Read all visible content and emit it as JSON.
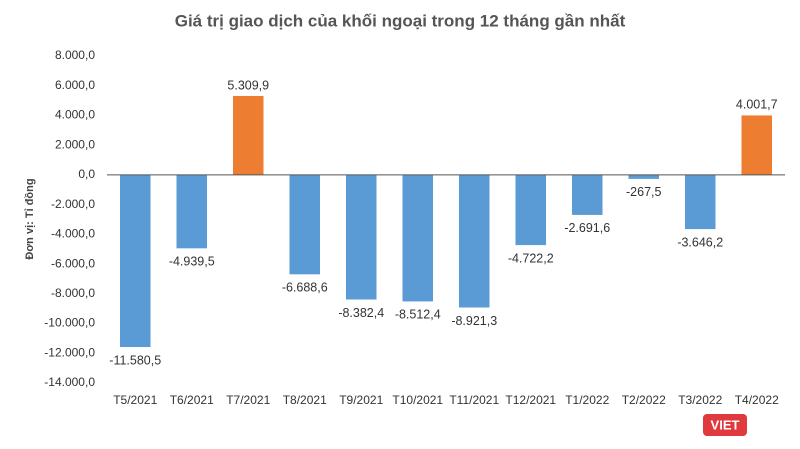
{
  "chart_data": {
    "type": "bar",
    "title": "Giá trị giao dịch của khối ngoại trong 12 tháng gần nhất",
    "y_label": "Đơn vị: Tỉ đồng",
    "watermark": "VIET",
    "categories": [
      "T5/2021",
      "T6/2021",
      "T7/2021",
      "T8/2021",
      "T9/2021",
      "T10/2021",
      "T11/2021",
      "T12/2021",
      "T1/2022",
      "T2/2022",
      "T3/2022",
      "T4/2022"
    ],
    "values": [
      -11580.5,
      -4939.5,
      5309.9,
      -6688.6,
      -8382.4,
      -8512.4,
      -8921.3,
      -4722.2,
      -2691.6,
      -267.5,
      -3646.2,
      4001.7
    ],
    "value_labels": [
      "-11.580,5",
      "-4.939,5",
      "5.309,9",
      "-6.688,6",
      "-8.382,4",
      "-8.512,4",
      "-8.921,3",
      "-4.722,2",
      "-2.691,6",
      "-267,5",
      "-3.646,2",
      "4.001,7"
    ],
    "colors": [
      "#5b9bd5",
      "#5b9bd5",
      "#ed7d31",
      "#5b9bd5",
      "#5b9bd5",
      "#5b9bd5",
      "#5b9bd5",
      "#5b9bd5",
      "#5b9bd5",
      "#5b9bd5",
      "#5b9bd5",
      "#ed7d31"
    ],
    "ylim": [
      -14000,
      8000
    ],
    "yticks": [
      {
        "value": -14000,
        "label": "-14.000,0"
      },
      {
        "value": -12000,
        "label": "-12.000,0"
      },
      {
        "value": -10000,
        "label": "-10.000,0"
      },
      {
        "value": -8000,
        "label": "-8.000,0"
      },
      {
        "value": -6000,
        "label": "-6.000,0"
      },
      {
        "value": -4000,
        "label": "-4.000,0"
      },
      {
        "value": -2000,
        "label": "-2.000,0"
      },
      {
        "value": 0,
        "label": "0,0"
      },
      {
        "value": 2000,
        "label": "2.000,0"
      },
      {
        "value": 4000,
        "label": "4.000,0"
      },
      {
        "value": 6000,
        "label": "6.000,0"
      },
      {
        "value": 8000,
        "label": "8.000,0"
      }
    ],
    "grid": false
  }
}
